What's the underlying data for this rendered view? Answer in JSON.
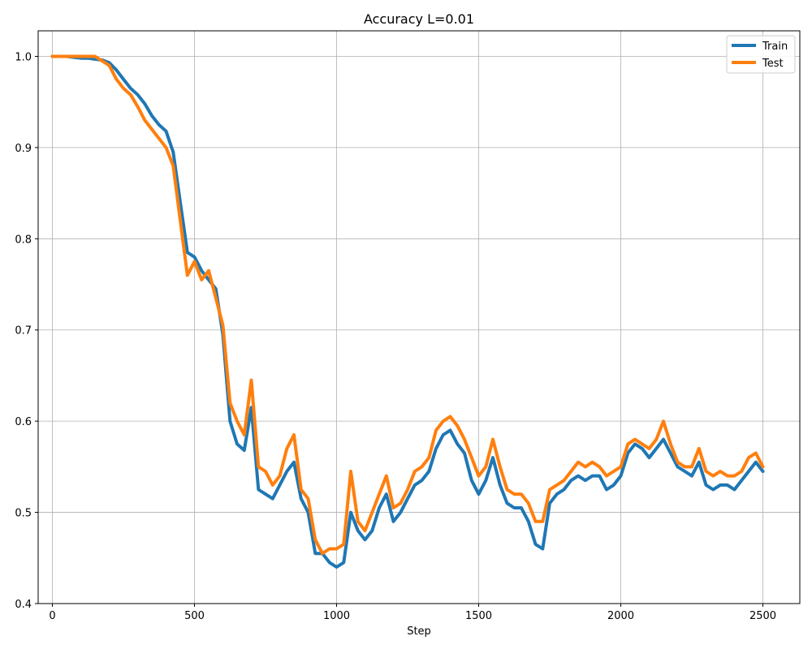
{
  "chart_data": {
    "type": "line",
    "title": "Accuracy L=0.01",
    "xlabel": "Step",
    "ylabel": "",
    "xlim": [
      -50,
      2630
    ],
    "ylim": [
      0.4,
      1.028
    ],
    "xticks": [
      0,
      500,
      1000,
      1500,
      2000,
      2500
    ],
    "yticks": [
      0.4,
      0.5,
      0.6,
      0.7,
      0.8,
      0.9,
      1.0
    ],
    "xtick_labels": [
      "0",
      "500",
      "1000",
      "1500",
      "2000",
      "2500"
    ],
    "ytick_labels": [
      "0.4",
      "0.5",
      "0.6",
      "0.7",
      "0.8",
      "0.9",
      "1.0"
    ],
    "grid": true,
    "legend_position": "top-right",
    "series": [
      {
        "name": "Train",
        "color": "#1f77b4",
        "x": [
          0,
          25,
          50,
          75,
          100,
          125,
          150,
          175,
          200,
          225,
          250,
          275,
          300,
          325,
          350,
          375,
          400,
          425,
          450,
          475,
          500,
          525,
          550,
          575,
          600,
          625,
          650,
          675,
          700,
          725,
          750,
          775,
          800,
          825,
          850,
          875,
          900,
          925,
          950,
          975,
          1000,
          1025,
          1050,
          1075,
          1100,
          1125,
          1150,
          1175,
          1200,
          1225,
          1250,
          1275,
          1300,
          1325,
          1350,
          1375,
          1400,
          1425,
          1450,
          1475,
          1500,
          1525,
          1550,
          1575,
          1600,
          1625,
          1650,
          1675,
          1700,
          1725,
          1750,
          1775,
          1800,
          1825,
          1850,
          1875,
          1900,
          1925,
          1950,
          1975,
          2000,
          2025,
          2050,
          2075,
          2100,
          2125,
          2150,
          2175,
          2200,
          2225,
          2250,
          2275,
          2300,
          2325,
          2350,
          2375,
          2400,
          2425,
          2450,
          2475,
          2500
        ],
        "y": [
          1.0,
          1.0,
          1.0,
          0.999,
          0.998,
          0.998,
          0.997,
          0.996,
          0.993,
          0.985,
          0.975,
          0.965,
          0.958,
          0.948,
          0.935,
          0.925,
          0.918,
          0.895,
          0.84,
          0.785,
          0.78,
          0.765,
          0.755,
          0.745,
          0.695,
          0.6,
          0.575,
          0.568,
          0.615,
          0.525,
          0.52,
          0.515,
          0.53,
          0.545,
          0.555,
          0.515,
          0.5,
          0.455,
          0.455,
          0.445,
          0.44,
          0.445,
          0.5,
          0.48,
          0.47,
          0.48,
          0.505,
          0.52,
          0.49,
          0.5,
          0.515,
          0.53,
          0.535,
          0.545,
          0.57,
          0.585,
          0.59,
          0.575,
          0.565,
          0.535,
          0.52,
          0.535,
          0.56,
          0.53,
          0.51,
          0.505,
          0.505,
          0.49,
          0.465,
          0.46,
          0.51,
          0.52,
          0.525,
          0.535,
          0.54,
          0.535,
          0.54,
          0.54,
          0.525,
          0.53,
          0.54,
          0.565,
          0.575,
          0.57,
          0.56,
          0.57,
          0.58,
          0.565,
          0.55,
          0.545,
          0.54,
          0.555,
          0.53,
          0.525,
          0.53,
          0.53,
          0.525,
          0.535,
          0.545,
          0.555,
          0.545
        ]
      },
      {
        "name": "Test",
        "color": "#ff7f0e",
        "x": [
          0,
          25,
          50,
          75,
          100,
          125,
          150,
          175,
          200,
          225,
          250,
          275,
          300,
          325,
          350,
          375,
          400,
          425,
          450,
          475,
          500,
          525,
          550,
          575,
          600,
          625,
          650,
          675,
          700,
          725,
          750,
          775,
          800,
          825,
          850,
          875,
          900,
          925,
          950,
          975,
          1000,
          1025,
          1050,
          1075,
          1100,
          1125,
          1150,
          1175,
          1200,
          1225,
          1250,
          1275,
          1300,
          1325,
          1350,
          1375,
          1400,
          1425,
          1450,
          1475,
          1500,
          1525,
          1550,
          1575,
          1600,
          1625,
          1650,
          1675,
          1700,
          1725,
          1750,
          1775,
          1800,
          1825,
          1850,
          1875,
          1900,
          1925,
          1950,
          1975,
          2000,
          2025,
          2050,
          2075,
          2100,
          2125,
          2150,
          2175,
          2200,
          2225,
          2250,
          2275,
          2300,
          2325,
          2350,
          2375,
          2400,
          2425,
          2450,
          2475,
          2500
        ],
        "y": [
          1.0,
          1.0,
          1.0,
          1.0,
          1.0,
          1.0,
          1.0,
          0.995,
          0.99,
          0.975,
          0.965,
          0.958,
          0.945,
          0.93,
          0.92,
          0.91,
          0.9,
          0.88,
          0.82,
          0.76,
          0.775,
          0.755,
          0.765,
          0.735,
          0.705,
          0.62,
          0.6,
          0.585,
          0.645,
          0.55,
          0.545,
          0.53,
          0.54,
          0.57,
          0.585,
          0.525,
          0.515,
          0.47,
          0.455,
          0.46,
          0.46,
          0.465,
          0.545,
          0.49,
          0.48,
          0.5,
          0.52,
          0.54,
          0.505,
          0.51,
          0.525,
          0.545,
          0.55,
          0.56,
          0.59,
          0.6,
          0.605,
          0.595,
          0.58,
          0.56,
          0.54,
          0.55,
          0.58,
          0.55,
          0.525,
          0.52,
          0.52,
          0.51,
          0.49,
          0.49,
          0.525,
          0.53,
          0.535,
          0.545,
          0.555,
          0.55,
          0.555,
          0.55,
          0.54,
          0.545,
          0.55,
          0.575,
          0.58,
          0.575,
          0.57,
          0.58,
          0.6,
          0.575,
          0.555,
          0.55,
          0.55,
          0.57,
          0.545,
          0.54,
          0.545,
          0.54,
          0.54,
          0.545,
          0.56,
          0.565,
          0.55
        ]
      }
    ]
  }
}
